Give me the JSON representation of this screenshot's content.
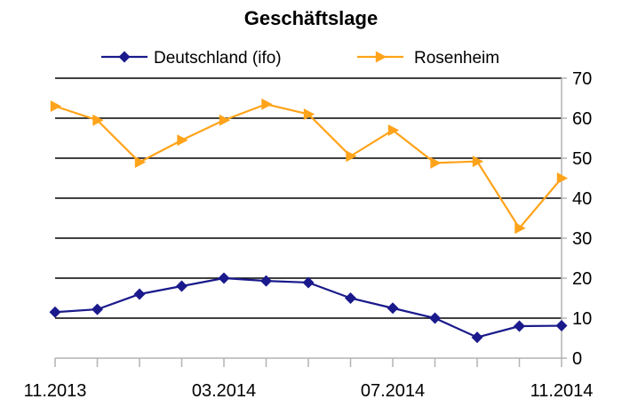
{
  "chart_data": {
    "type": "line",
    "title": "Geschäftslage",
    "x_tick_labels": [
      "11.2013",
      "03.2014",
      "07.2014",
      "11.2014"
    ],
    "x_tick_positions": [
      0,
      4,
      8,
      12
    ],
    "x_count": 13,
    "ylim": [
      0,
      70
    ],
    "y_ticks": [
      0,
      10,
      20,
      30,
      40,
      50,
      60,
      70
    ],
    "y_axis_side": "right",
    "grid": true,
    "legend": "top",
    "series": [
      {
        "name": "Deutschland (ifo)",
        "color": "#1a1a8c",
        "marker": "diamond",
        "values": [
          11.5,
          12.2,
          16.0,
          18.0,
          20.0,
          19.3,
          18.9,
          15.0,
          12.5,
          10.0,
          5.2,
          8.0,
          8.1
        ]
      },
      {
        "name": "Rosenheim",
        "color": "#ffa31a",
        "marker": "triangle-right",
        "values": [
          63.0,
          59.5,
          49.0,
          54.5,
          59.5,
          63.5,
          61.0,
          50.5,
          57.0,
          48.8,
          49.2,
          32.5,
          45.0
        ]
      }
    ]
  }
}
